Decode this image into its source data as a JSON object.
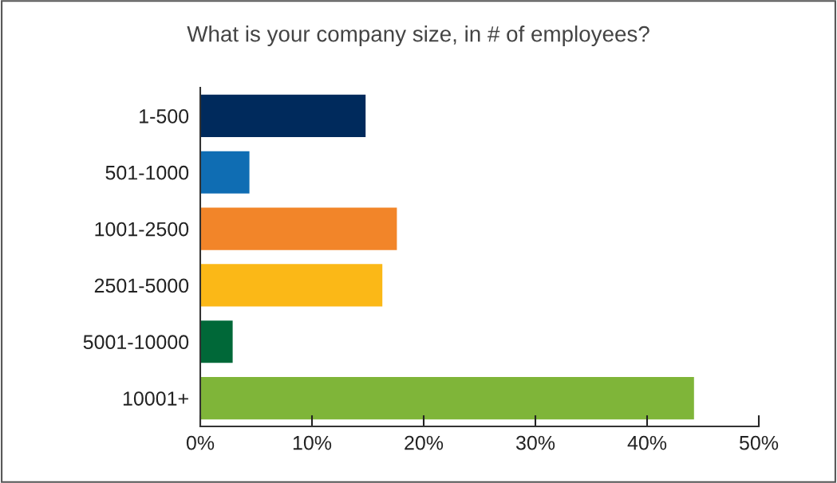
{
  "chart_data": {
    "type": "bar",
    "orientation": "horizontal",
    "title": "What is your company size, in # of employees?",
    "categories": [
      "1-500",
      "501-1000",
      "1001-2500",
      "2501-5000",
      "5001-10000",
      "10001+"
    ],
    "values": [
      14.8,
      4.4,
      17.6,
      16.3,
      2.9,
      44.2
    ],
    "colors": [
      "#002a5c",
      "#0f6db3",
      "#f28529",
      "#fbb817",
      "#006838",
      "#7fb539"
    ],
    "xlim": [
      0,
      50
    ],
    "xticks": [
      {
        "value": 0,
        "label": "0%"
      },
      {
        "value": 10,
        "label": "10%"
      },
      {
        "value": 20,
        "label": "20%"
      },
      {
        "value": 30,
        "label": "30%"
      },
      {
        "value": 40,
        "label": "40%"
      },
      {
        "value": 50,
        "label": "50%"
      }
    ],
    "grid": false,
    "legend": false
  }
}
